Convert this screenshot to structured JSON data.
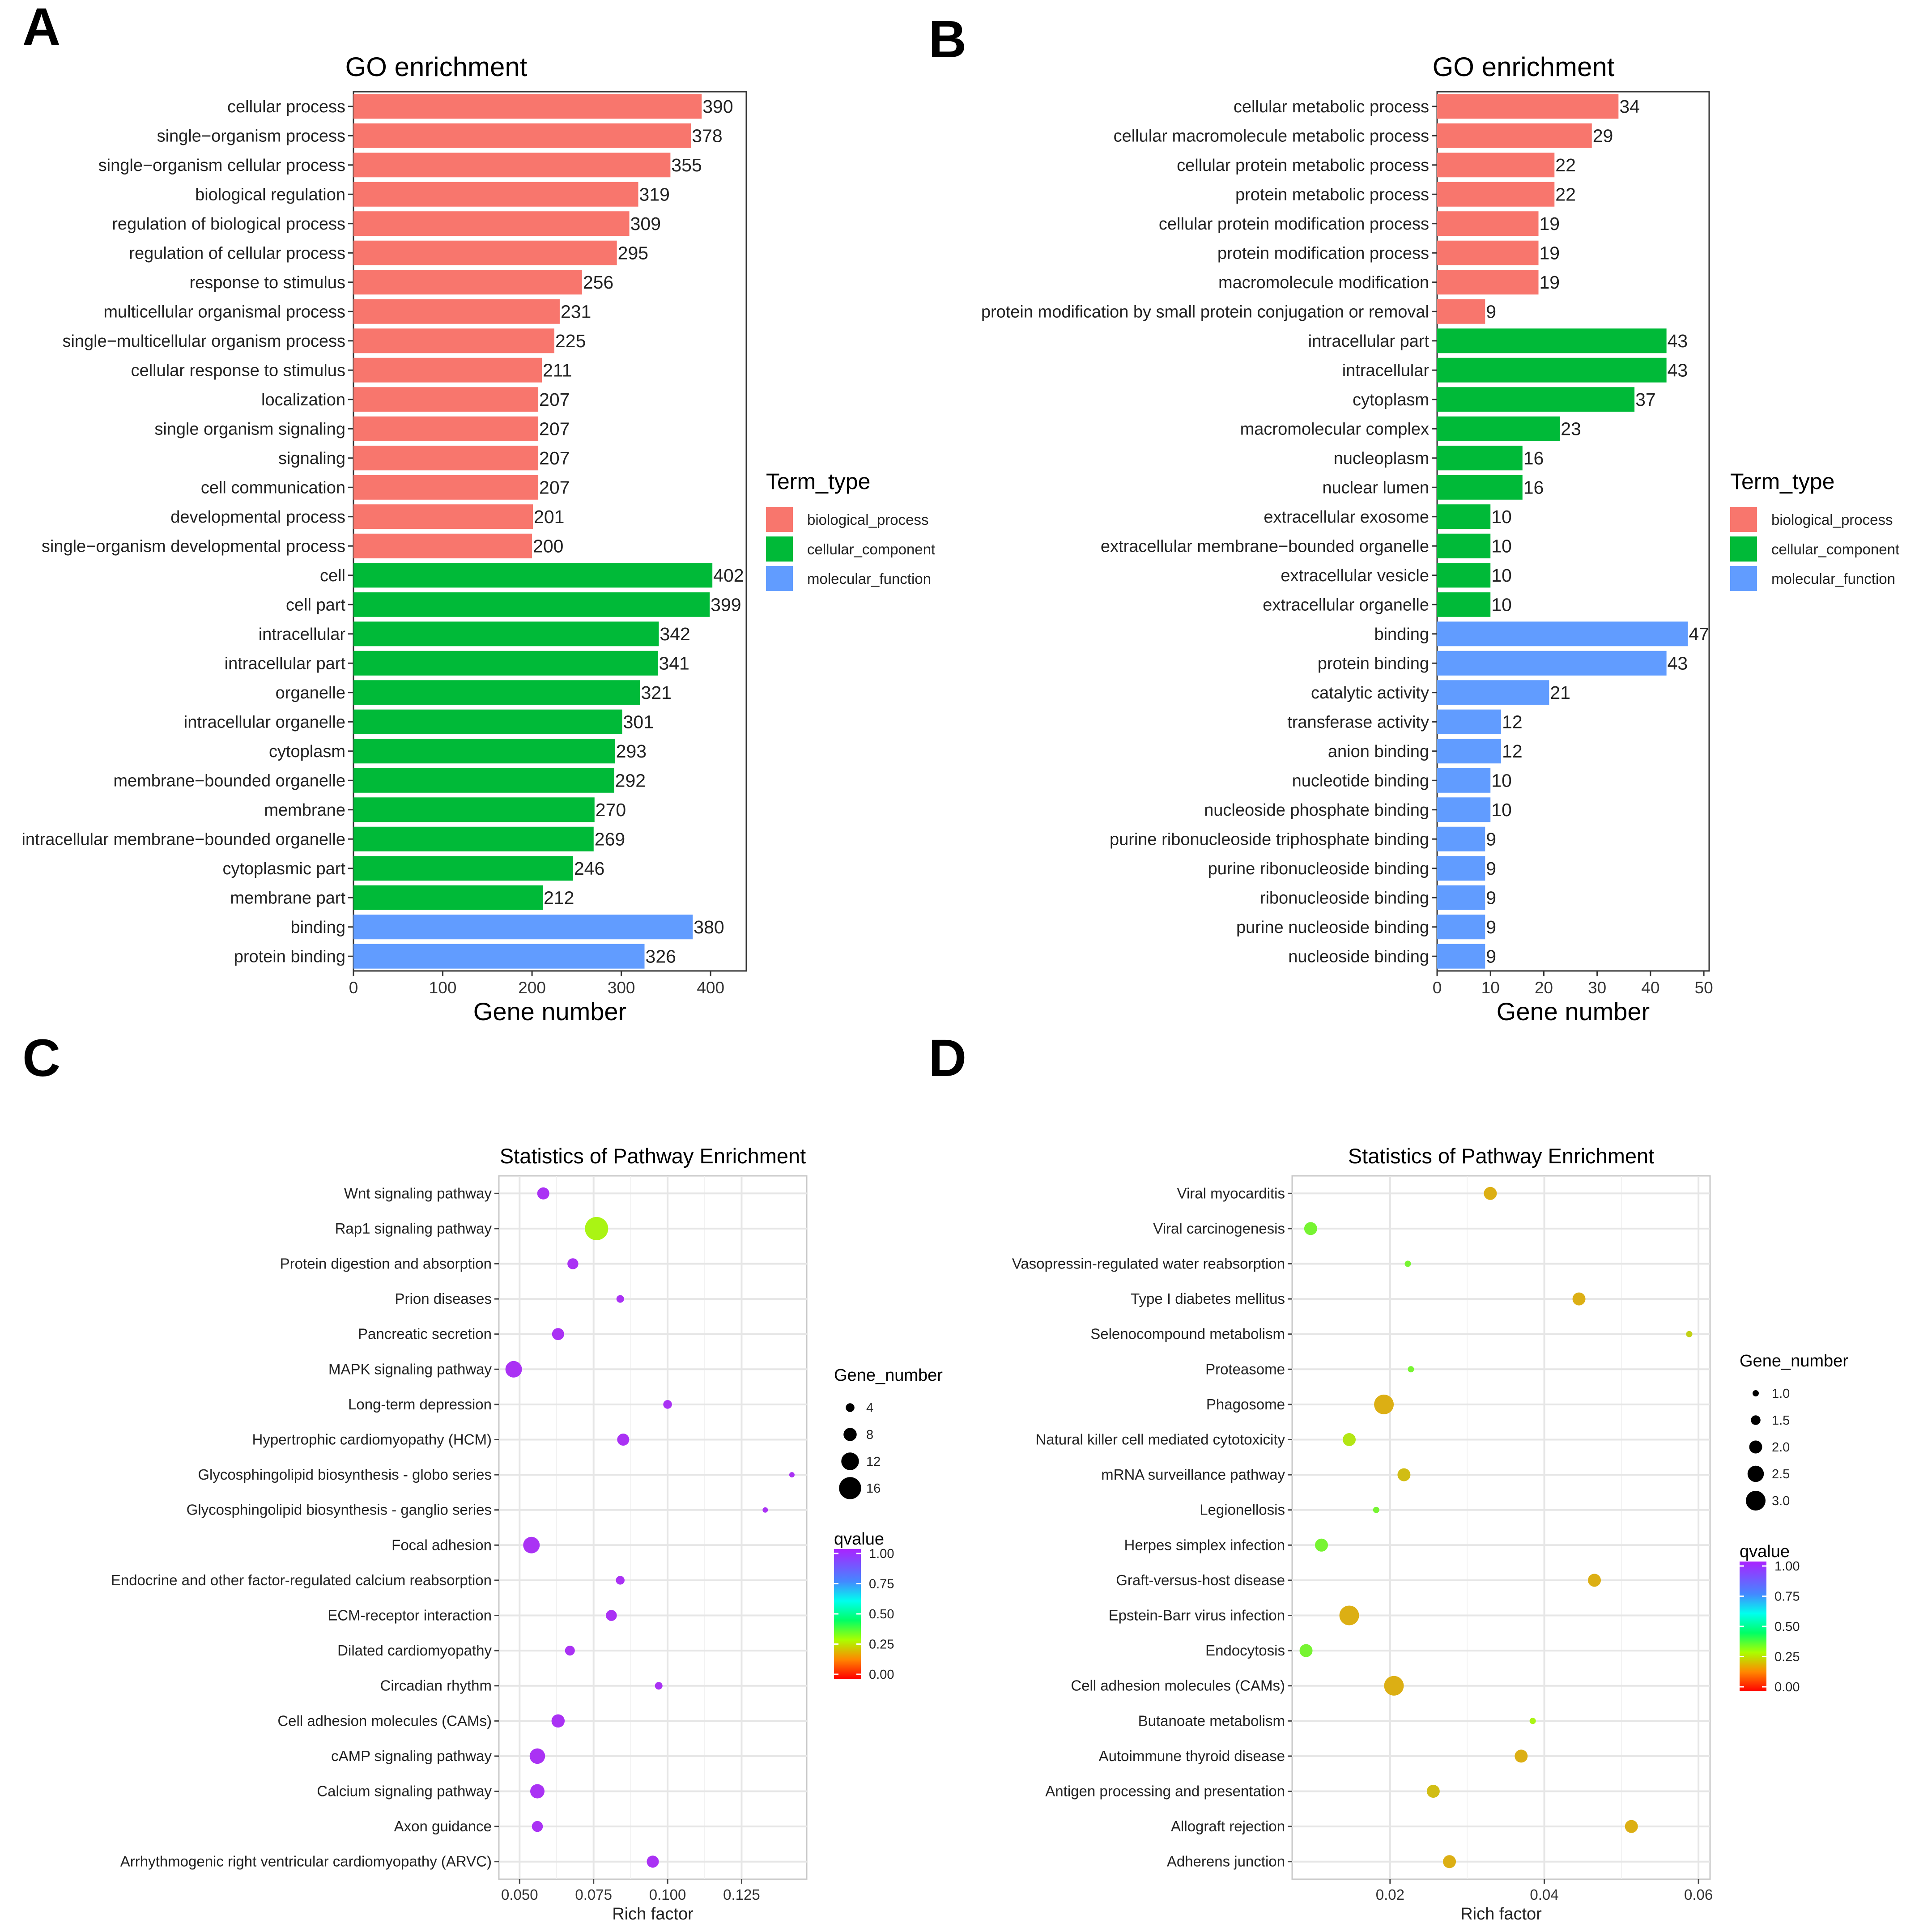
{
  "colors": {
    "biological_process": "#F8766D",
    "cellular_component": "#00BA38",
    "molecular_function": "#619CFF"
  },
  "chart_data": [
    {
      "panel": "A",
      "type": "bar",
      "orientation": "horizontal",
      "title": "GO enrichment",
      "xlabel": "Gene number",
      "xlim": [
        0,
        440
      ],
      "xticks": [
        0,
        100,
        200,
        300,
        400
      ],
      "legend_title": "Term_type",
      "legend": [
        "biological_process",
        "cellular_component",
        "molecular_function"
      ],
      "categories": [
        "cellular process",
        "single−organism process",
        "single−organism cellular process",
        "biological regulation",
        "regulation of biological process",
        "regulation of cellular process",
        "response to stimulus",
        "multicellular organismal process",
        "single−multicellular organism process",
        "cellular response to stimulus",
        "localization",
        "single organism signaling",
        "signaling",
        "cell communication",
        "developmental process",
        "single−organism developmental process",
        "cell",
        "cell part",
        "intracellular",
        "intracellular part",
        "organelle",
        "intracellular organelle",
        "cytoplasm",
        "membrane−bounded organelle",
        "membrane",
        "intracellular membrane−bounded organelle",
        "cytoplasmic part",
        "membrane part",
        "binding",
        "protein binding"
      ],
      "values": [
        390,
        378,
        355,
        319,
        309,
        295,
        256,
        231,
        225,
        211,
        207,
        207,
        207,
        207,
        201,
        200,
        402,
        399,
        342,
        341,
        321,
        301,
        293,
        292,
        270,
        269,
        246,
        212,
        380,
        326
      ],
      "term_type": [
        "biological_process",
        "biological_process",
        "biological_process",
        "biological_process",
        "biological_process",
        "biological_process",
        "biological_process",
        "biological_process",
        "biological_process",
        "biological_process",
        "biological_process",
        "biological_process",
        "biological_process",
        "biological_process",
        "biological_process",
        "biological_process",
        "cellular_component",
        "cellular_component",
        "cellular_component",
        "cellular_component",
        "cellular_component",
        "cellular_component",
        "cellular_component",
        "cellular_component",
        "cellular_component",
        "cellular_component",
        "cellular_component",
        "cellular_component",
        "molecular_function",
        "molecular_function"
      ]
    },
    {
      "panel": "B",
      "type": "bar",
      "orientation": "horizontal",
      "title": "GO enrichment",
      "xlabel": "Gene number",
      "xlim": [
        0,
        51
      ],
      "xticks": [
        0,
        10,
        20,
        30,
        40,
        50
      ],
      "legend_title": "Term_type",
      "legend": [
        "biological_process",
        "cellular_component",
        "molecular_function"
      ],
      "categories": [
        "cellular metabolic process",
        "cellular macromolecule metabolic process",
        "cellular protein metabolic process",
        "protein metabolic process",
        "cellular protein modification process",
        "protein modification process",
        "macromolecule modification",
        "protein modification by small protein conjugation or removal",
        "intracellular part",
        "intracellular",
        "cytoplasm",
        "macromolecular complex",
        "nucleoplasm",
        "nuclear lumen",
        "extracellular exosome",
        "extracellular membrane−bounded organelle",
        "extracellular vesicle",
        "extracellular organelle",
        "binding",
        "protein binding",
        "catalytic activity",
        "transferase activity",
        "anion binding",
        "nucleotide binding",
        "nucleoside phosphate binding",
        "purine ribonucleoside triphosphate binding",
        "purine ribonucleoside binding",
        "ribonucleoside binding",
        "purine nucleoside binding",
        "nucleoside binding"
      ],
      "values": [
        34,
        29,
        22,
        22,
        19,
        19,
        19,
        9,
        43,
        43,
        37,
        23,
        16,
        16,
        10,
        10,
        10,
        10,
        47,
        43,
        21,
        12,
        12,
        10,
        10,
        9,
        9,
        9,
        9,
        9
      ],
      "term_type": [
        "biological_process",
        "biological_process",
        "biological_process",
        "biological_process",
        "biological_process",
        "biological_process",
        "biological_process",
        "biological_process",
        "cellular_component",
        "cellular_component",
        "cellular_component",
        "cellular_component",
        "cellular_component",
        "cellular_component",
        "cellular_component",
        "cellular_component",
        "cellular_component",
        "cellular_component",
        "molecular_function",
        "molecular_function",
        "molecular_function",
        "molecular_function",
        "molecular_function",
        "molecular_function",
        "molecular_function",
        "molecular_function",
        "molecular_function",
        "molecular_function",
        "molecular_function",
        "molecular_function"
      ]
    },
    {
      "panel": "C",
      "type": "scatter",
      "title": "Statistics of Pathway Enrichment",
      "xlabel": "Rich factor",
      "xlim": [
        0.043,
        0.147
      ],
      "xticks": [
        0.05,
        0.075,
        0.1,
        0.125
      ],
      "xtick_labels": [
        "0.050",
        "0.075",
        "0.100",
        "0.125"
      ],
      "size_legend_title": "Gene_number",
      "size_legend": [
        4,
        8,
        12,
        16
      ],
      "size_range": [
        1,
        17
      ],
      "color_legend_title": "qvalue",
      "color_legend_ticks": [
        "1.00",
        "0.75",
        "0.50",
        "0.25",
        "0.00"
      ],
      "categories": [
        "Wnt signaling pathway",
        "Rap1 signaling pathway",
        "Protein digestion and absorption",
        "Prion diseases",
        "Pancreatic secretion",
        "MAPK signaling pathway",
        "Long-term depression",
        "Hypertrophic cardiomyopathy (HCM)",
        "Glycosphingolipid biosynthesis - globo series",
        "Glycosphingolipid biosynthesis - ganglio series",
        "Focal adhesion",
        "Endocrine and other factor-regulated calcium reabsorption",
        "ECM-receptor interaction",
        "Dilated cardiomyopathy",
        "Circadian rhythm",
        "Cell adhesion molecules (CAMs)",
        "cAMP signaling pathway",
        "Calcium signaling pathway",
        "Axon guidance",
        "Arrhythmogenic right ventricular cardiomyopathy (ARVC)"
      ],
      "x": [
        0.058,
        0.076,
        0.068,
        0.084,
        0.063,
        0.048,
        0.1,
        0.085,
        0.142,
        0.133,
        0.054,
        0.084,
        0.081,
        0.067,
        0.097,
        0.063,
        0.056,
        0.056,
        0.056,
        0.095
      ],
      "gene_number": [
        7,
        17,
        6,
        3,
        7,
        11,
        4,
        7,
        1,
        1,
        11,
        4,
        6,
        5,
        3,
        8,
        10,
        9,
        6,
        7
      ],
      "qvalue": [
        1,
        0.3,
        1,
        1,
        1,
        1,
        1,
        1,
        1,
        1,
        1,
        1,
        1,
        1,
        1,
        1,
        1,
        1,
        1,
        1
      ]
    },
    {
      "panel": "D",
      "type": "scatter",
      "title": "Statistics of Pathway Enrichment",
      "xlabel": "Rich factor",
      "xlim": [
        0.0073,
        0.0615
      ],
      "xticks": [
        0.02,
        0.04,
        0.06
      ],
      "xtick_labels": [
        "0.02",
        "0.04",
        "0.06"
      ],
      "size_legend_title": "Gene_number",
      "size_legend": [
        1.0,
        1.5,
        2.0,
        2.5,
        3.0
      ],
      "size_range": [
        1,
        3
      ],
      "color_legend_title": "qvalue",
      "color_legend_ticks": [
        "1.00",
        "0.75",
        "0.50",
        "0.25",
        "0.00"
      ],
      "categories": [
        "Viral myocarditis",
        "Viral carcinogenesis",
        "Vasopressin-regulated water reabsorption",
        "Type I diabetes mellitus",
        "Selenocompound metabolism",
        "Proteasome",
        "Phagosome",
        "Natural killer cell mediated cytotoxicity",
        "mRNA surveillance pathway",
        "Legionellosis",
        "Herpes simplex infection",
        "Graft-versus-host disease",
        "Epstein-Barr virus infection",
        "Endocytosis",
        "Cell adhesion molecules (CAMs)",
        "Butanoate metabolism",
        "Autoimmune thyroid disease",
        "Antigen processing and presentation",
        "Allograft rejection",
        "Adherens junction"
      ],
      "x": [
        0.033,
        0.0097,
        0.0223,
        0.0445,
        0.0588,
        0.0227,
        0.0192,
        0.0147,
        0.0218,
        0.0182,
        0.0111,
        0.0465,
        0.0147,
        0.0091,
        0.0205,
        0.0385,
        0.037,
        0.0256,
        0.0513,
        0.0277
      ],
      "gene_number": [
        2,
        2,
        1,
        2,
        1,
        1,
        3,
        2,
        2,
        1,
        2,
        2,
        3,
        2,
        3,
        1,
        2,
        2,
        2,
        2
      ],
      "qvalue": [
        0.2,
        0.35,
        0.35,
        0.2,
        0.25,
        0.35,
        0.2,
        0.28,
        0.22,
        0.35,
        0.35,
        0.2,
        0.2,
        0.35,
        0.2,
        0.3,
        0.2,
        0.22,
        0.2,
        0.2
      ]
    }
  ]
}
